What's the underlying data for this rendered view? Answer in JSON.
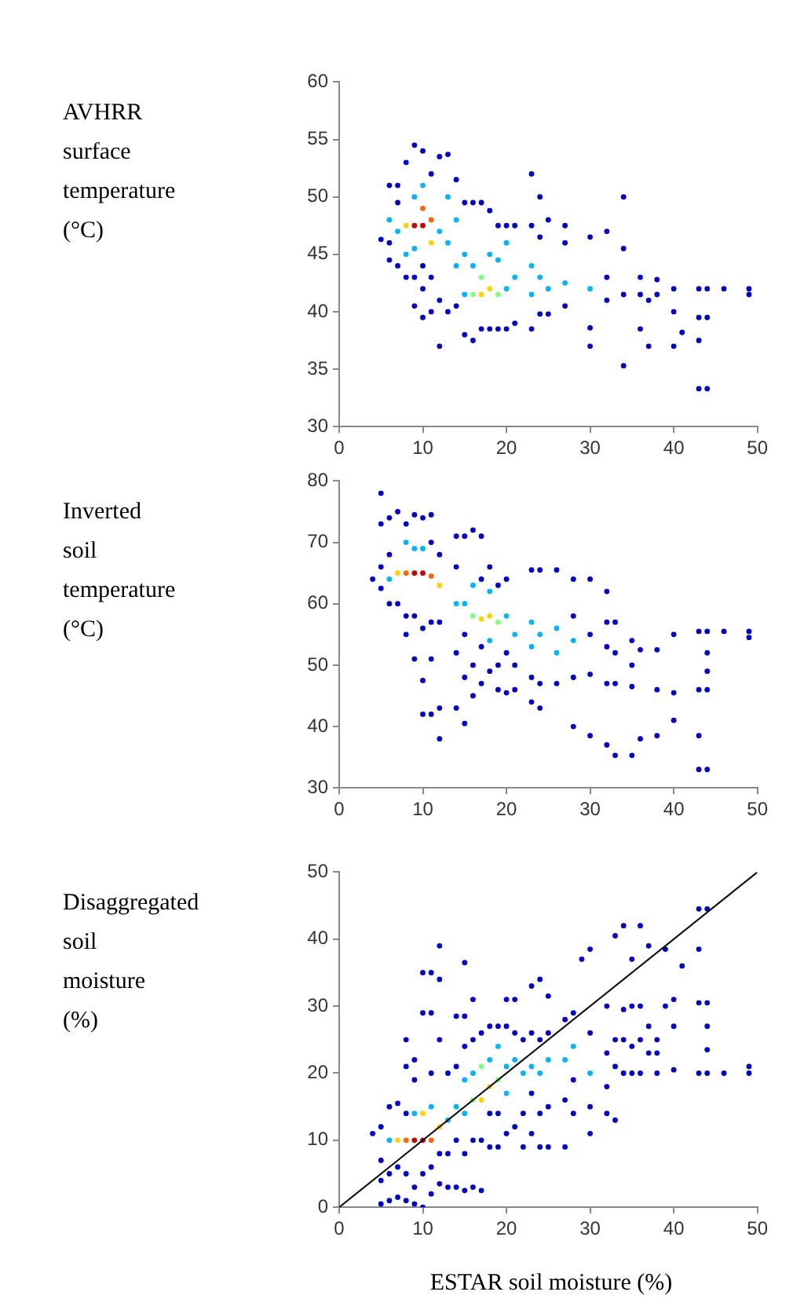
{
  "chart_data": [
    {
      "type": "scatter",
      "ylabel": "AVHRR\nsurface\ntemperature\n(°C)",
      "xlim": [
        0,
        50
      ],
      "xticks": [
        0,
        10,
        20,
        30,
        40,
        50
      ],
      "ylim": [
        30,
        60
      ],
      "yticks": [
        30,
        35,
        40,
        45,
        50,
        55,
        60
      ],
      "marker": "circle",
      "series": [
        {
          "type": "scatter",
          "color": "#0000cc",
          "x": [
            5,
            6,
            6,
            6,
            7,
            7,
            7,
            8,
            8,
            9,
            9,
            9,
            10,
            10,
            10,
            10,
            11,
            11,
            11,
            12,
            12,
            12,
            13,
            13,
            14,
            14,
            15,
            15,
            16,
            16,
            17,
            17,
            18,
            18,
            19,
            19,
            20,
            20,
            21,
            21,
            23,
            23,
            23,
            24,
            24,
            24,
            25,
            25,
            27,
            27,
            27,
            30,
            30,
            30,
            32,
            32,
            32,
            34,
            34,
            34,
            34,
            36,
            36,
            36,
            37,
            37,
            38,
            38,
            40,
            40,
            40,
            41,
            43,
            43,
            43,
            43,
            44,
            44,
            44,
            46,
            49,
            49
          ],
          "values": [
            46.3,
            44.5,
            46,
            51,
            44,
            49.5,
            51,
            43,
            53,
            40.5,
            43,
            54.5,
            39.5,
            42,
            44,
            54,
            40,
            43,
            52,
            37,
            41,
            53.5,
            40,
            53.7,
            40.5,
            51.5,
            38,
            49.5,
            37.5,
            49.5,
            38.5,
            49.5,
            38.5,
            48.8,
            38.5,
            47.5,
            38.5,
            47.5,
            39,
            47.5,
            38.5,
            47.5,
            52,
            39.8,
            46.5,
            50,
            39.8,
            48,
            40.5,
            46,
            47.5,
            37,
            38.6,
            46.5,
            41,
            43,
            47,
            35.3,
            41.5,
            45.5,
            50,
            38.5,
            41.5,
            43,
            37,
            41,
            41.5,
            42.8,
            37,
            40,
            42,
            38.2,
            33.3,
            37.5,
            39.5,
            42,
            33.3,
            39.5,
            42,
            42,
            41.5,
            42
          ]
        },
        {
          "type": "scatter",
          "color": "#00b4ff",
          "x": [
            6,
            7,
            8,
            9,
            9,
            10,
            12,
            13,
            13,
            14,
            14,
            15,
            15,
            16,
            18,
            19,
            20,
            20,
            21,
            23,
            23,
            24,
            25,
            27,
            30
          ],
          "values": [
            48,
            47,
            45,
            45.5,
            50,
            51,
            47,
            46,
            50,
            44,
            48,
            41.5,
            45,
            44,
            45,
            44.5,
            42,
            46,
            43,
            41.5,
            44,
            43,
            42,
            42.5,
            42
          ]
        },
        {
          "type": "scatter",
          "color": "#80ff80",
          "x": [
            16,
            17,
            19
          ],
          "values": [
            41.5,
            43,
            41.5
          ]
        },
        {
          "type": "scatter",
          "color": "#ffd200",
          "x": [
            8,
            11,
            17,
            18
          ],
          "values": [
            47.5,
            46,
            41.5,
            42
          ]
        },
        {
          "type": "scatter",
          "color": "#ff6400",
          "x": [
            11,
            10
          ],
          "values": [
            48,
            49
          ]
        },
        {
          "type": "scatter",
          "color": "#c80000",
          "x": [
            9,
            10
          ],
          "values": [
            47.5,
            47.5
          ]
        }
      ]
    },
    {
      "type": "scatter",
      "ylabel": "Inverted\nsoil\ntemperature\n(°C)",
      "xlim": [
        0,
        50
      ],
      "xticks": [
        0,
        10,
        20,
        30,
        40,
        50
      ],
      "ylim": [
        30,
        80
      ],
      "yticks": [
        30,
        40,
        50,
        60,
        70,
        80
      ],
      "marker": "circle",
      "series": [
        {
          "type": "scatter",
          "color": "#0000cc",
          "x": [
            4,
            5,
            5,
            5,
            5,
            6,
            6,
            6,
            7,
            7,
            8,
            8,
            8,
            9,
            9,
            9,
            10,
            10,
            10,
            10,
            11,
            11,
            11,
            11,
            11,
            12,
            12,
            12,
            12,
            14,
            14,
            14,
            14,
            15,
            15,
            15,
            15,
            16,
            16,
            16,
            17,
            17,
            17,
            17,
            18,
            18,
            19,
            19,
            19,
            20,
            20,
            20,
            21,
            21,
            23,
            23,
            23,
            24,
            24,
            24,
            26,
            26,
            28,
            28,
            28,
            28,
            30,
            30,
            30,
            30,
            32,
            32,
            32,
            32,
            32,
            33,
            33,
            33,
            33,
            35,
            35,
            35,
            35,
            36,
            36,
            38,
            38,
            38,
            40,
            40,
            40,
            43,
            43,
            43,
            43,
            44,
            44,
            44,
            44,
            44,
            46,
            49,
            49
          ],
          "values": [
            64,
            62.5,
            66,
            73,
            78,
            60,
            68,
            74,
            60,
            75,
            55,
            58,
            73,
            51,
            58,
            74.5,
            42,
            47.5,
            56,
            74,
            42,
            51,
            57,
            70,
            74.5,
            38,
            43,
            57,
            68,
            43,
            52,
            66,
            71,
            40.5,
            48,
            55,
            71,
            45,
            50,
            72,
            47,
            53,
            64,
            71,
            49,
            66,
            46,
            50,
            63,
            45.5,
            52,
            64,
            46,
            50,
            44,
            48,
            65.5,
            43,
            47,
            65.5,
            47,
            65.5,
            40,
            48,
            58,
            64,
            38.5,
            48.5,
            55,
            64,
            37,
            47,
            53,
            57,
            62,
            35.3,
            47,
            52,
            57,
            35.3,
            46.5,
            50,
            54,
            38,
            52.5,
            38.5,
            46,
            52.5,
            41,
            45.5,
            55,
            33,
            38.5,
            46,
            55.5,
            33,
            46,
            49,
            52,
            55.5,
            55.5,
            54.5,
            55.5
          ]
        },
        {
          "type": "scatter",
          "color": "#00b4ff",
          "x": [
            6,
            8,
            9,
            10,
            14,
            15,
            16,
            18,
            18,
            20,
            21,
            23,
            23,
            24,
            26,
            26,
            28
          ],
          "values": [
            64,
            70,
            69,
            69,
            60,
            60,
            63,
            54,
            62,
            58,
            55,
            53,
            57,
            55,
            52,
            56,
            54
          ]
        },
        {
          "type": "scatter",
          "color": "#80ff80",
          "x": [
            16,
            19
          ],
          "values": [
            58,
            57
          ]
        },
        {
          "type": "scatter",
          "color": "#ffd200",
          "x": [
            7,
            12,
            17,
            18
          ],
          "values": [
            65,
            63,
            57.5,
            58
          ]
        },
        {
          "type": "scatter",
          "color": "#ff6400",
          "x": [
            8,
            11
          ],
          "values": [
            65,
            64.5
          ]
        },
        {
          "type": "scatter",
          "color": "#c80000",
          "x": [
            9,
            10
          ],
          "values": [
            65,
            65
          ]
        }
      ]
    },
    {
      "type": "scatter",
      "ylabel": "Disaggregated\nsoil\nmoisture\n(%)",
      "xlabel": "ESTAR soil moisture (%)",
      "xlim": [
        0,
        50
      ],
      "xticks": [
        0,
        10,
        20,
        30,
        40,
        50
      ],
      "ylim": [
        0,
        50
      ],
      "yticks": [
        0,
        10,
        20,
        30,
        40,
        50
      ],
      "marker": "circle",
      "series": [
        {
          "type": "scatter",
          "color": "#0000cc",
          "x": [
            4,
            5,
            5,
            5,
            5,
            6,
            6,
            6,
            7,
            7,
            7,
            8,
            8,
            8,
            8,
            8,
            9,
            9,
            9,
            9,
            10,
            10,
            10,
            10,
            11,
            11,
            11,
            11,
            11,
            12,
            12,
            12,
            12,
            12,
            13,
            13,
            13,
            14,
            14,
            14,
            14,
            15,
            15,
            15,
            15,
            15,
            16,
            16,
            16,
            16,
            17,
            17,
            17,
            18,
            18,
            18,
            19,
            19,
            19,
            20,
            20,
            20,
            21,
            21,
            21,
            22,
            22,
            22,
            23,
            23,
            23,
            23,
            24,
            24,
            24,
            24,
            25,
            25,
            25,
            25,
            27,
            27,
            27,
            28,
            28,
            28,
            29,
            30,
            30,
            30,
            30,
            32,
            32,
            32,
            32,
            33,
            33,
            33,
            33,
            34,
            34,
            34,
            34,
            35,
            35,
            35,
            35,
            36,
            36,
            36,
            36,
            37,
            37,
            37,
            38,
            38,
            38,
            39,
            39,
            40,
            40,
            40,
            41,
            43,
            43,
            43,
            43,
            44,
            44,
            44,
            44,
            44,
            46,
            49,
            49
          ],
          "values": [
            11,
            0.5,
            4,
            7,
            12,
            1,
            5,
            15,
            1.5,
            6,
            15.5,
            1,
            5,
            14,
            21,
            25,
            0.5,
            3,
            19,
            22,
            0,
            5,
            29,
            35,
            2,
            6,
            20,
            29,
            35,
            3.5,
            8,
            25,
            34,
            39,
            3,
            8,
            20,
            3,
            10,
            21,
            28.5,
            2.5,
            8,
            24,
            28.5,
            36.5,
            3,
            10,
            25,
            31,
            2.5,
            10,
            26,
            9,
            14,
            27,
            9,
            14,
            27,
            11,
            27,
            31,
            12,
            26,
            31,
            9,
            14,
            25,
            11,
            17,
            26,
            33,
            9,
            14,
            25,
            34,
            9,
            15,
            26,
            31.5,
            9,
            16,
            28,
            14,
            19,
            29,
            37,
            11,
            15,
            26,
            38.5,
            14,
            18,
            23,
            30,
            13,
            21,
            25,
            40.5,
            20,
            25,
            29.5,
            42,
            20,
            24,
            30,
            37,
            20,
            25,
            30,
            42,
            23,
            27,
            39,
            20,
            23,
            25,
            30,
            38.5,
            20.5,
            27,
            31,
            36,
            20,
            30.5,
            38.5,
            44.5,
            20,
            23.5,
            27,
            30.5,
            44.5,
            20,
            20,
            21
          ]
        },
        {
          "type": "scatter",
          "color": "#00b4ff",
          "x": [
            6,
            9,
            11,
            13,
            14,
            15,
            15,
            16,
            18,
            19,
            20,
            20,
            21,
            22,
            23,
            24,
            25,
            27,
            28,
            30
          ],
          "values": [
            10,
            14,
            15,
            13,
            15,
            14,
            19,
            20,
            22,
            24,
            17,
            21,
            22,
            20,
            21,
            20,
            22,
            22,
            24,
            20
          ]
        },
        {
          "type": "scatter",
          "color": "#80ff80",
          "x": [
            16,
            17,
            19
          ],
          "values": [
            16,
            21,
            19
          ]
        },
        {
          "type": "scatter",
          "color": "#ffd200",
          "x": [
            7,
            10,
            12,
            17,
            18
          ],
          "values": [
            10,
            14,
            12,
            16,
            18
          ]
        },
        {
          "type": "scatter",
          "color": "#ff6400",
          "x": [
            8,
            11
          ],
          "values": [
            10,
            10
          ]
        },
        {
          "type": "scatter",
          "color": "#c80000",
          "x": [
            9,
            10
          ],
          "values": [
            10,
            10
          ]
        },
        {
          "type": "line",
          "color": "#000000",
          "marker": "none",
          "x": [
            0,
            50
          ],
          "values": [
            0,
            50
          ]
        }
      ]
    }
  ]
}
